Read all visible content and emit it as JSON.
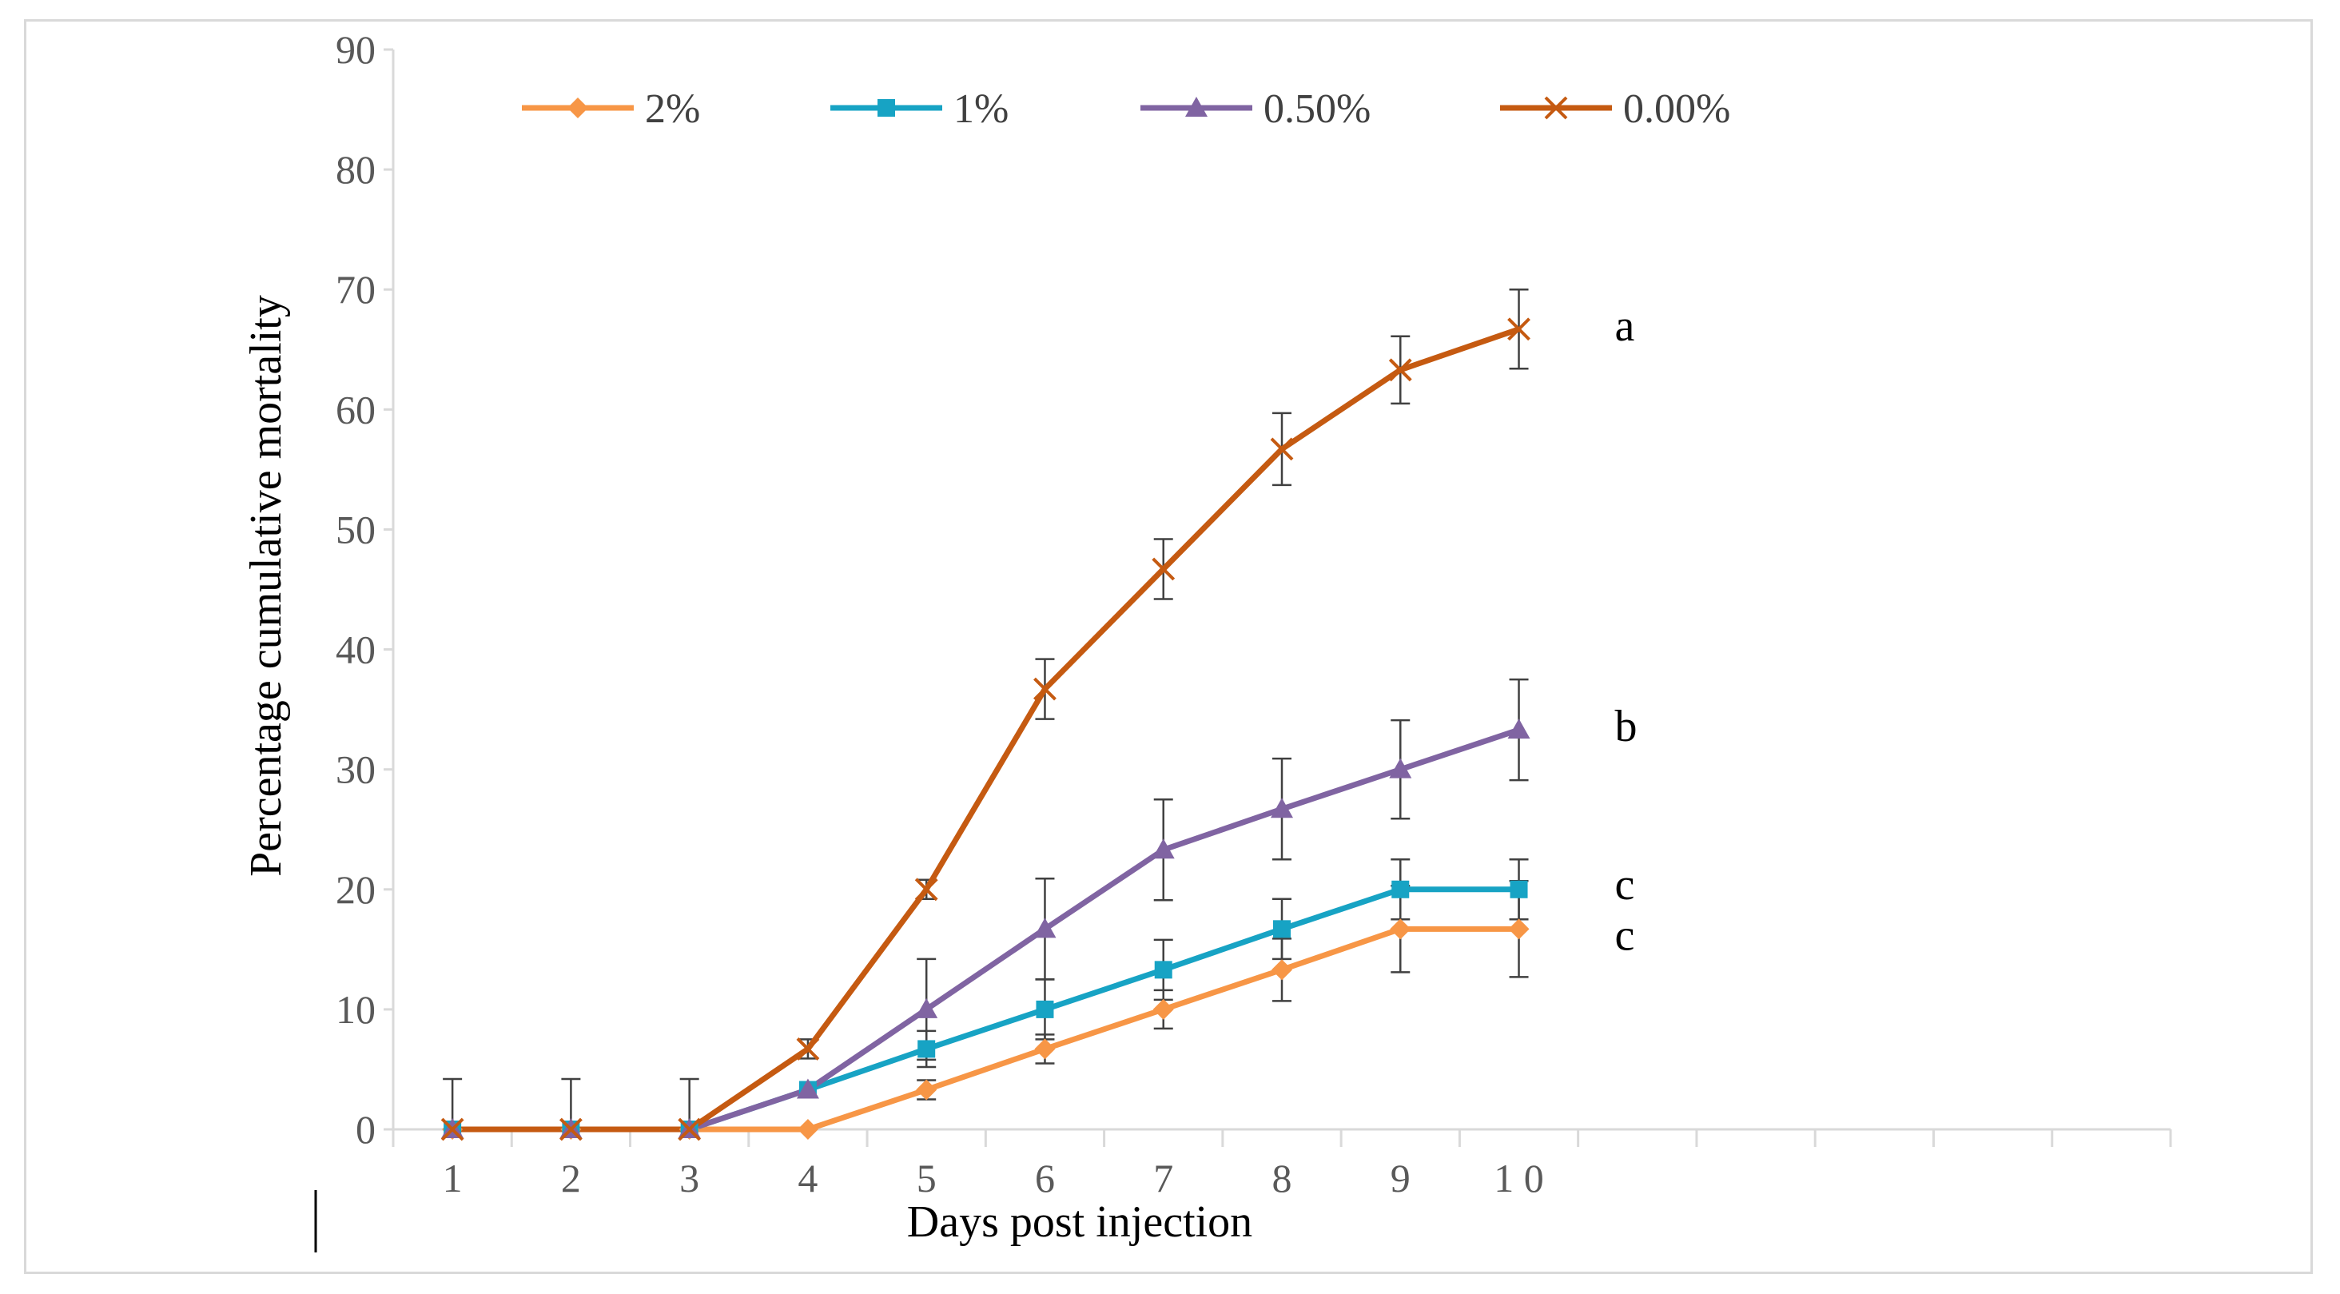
{
  "chart_data": {
    "type": "line",
    "title": "",
    "xlabel": "Days post injection",
    "ylabel": "Percentage cumulative mortality",
    "x": [
      1,
      2,
      3,
      4,
      5,
      6,
      7,
      8,
      9,
      10
    ],
    "x_tick_labels": [
      "1",
      "2",
      "3",
      "4",
      "5",
      "6",
      "7",
      "8",
      "9",
      "1 0"
    ],
    "x_axis_categories": 15,
    "y_ticks": [
      0,
      10,
      20,
      30,
      40,
      50,
      60,
      70,
      80,
      90
    ],
    "ylim": [
      0,
      90
    ],
    "grid": false,
    "legend_position": "top",
    "series": [
      {
        "name": "2%",
        "color": "#F79646",
        "marker": "diamond",
        "values": [
          0,
          0,
          0,
          0,
          3.3,
          6.7,
          10,
          13.3,
          16.7,
          16.7
        ],
        "errors": [
          4.2,
          4.2,
          4.2,
          0,
          0.8,
          1.2,
          1.6,
          2.6,
          3.6,
          4.0
        ],
        "group_letter": "c"
      },
      {
        "name": "1%",
        "color": "#17A3C4",
        "marker": "square",
        "values": [
          0,
          0,
          0,
          3.3,
          6.7,
          10,
          13.3,
          16.7,
          20,
          20
        ],
        "errors": [
          0,
          0,
          0,
          0,
          1.5,
          2.5,
          2.5,
          2.5,
          2.5,
          2.5
        ],
        "group_letter": "c"
      },
      {
        "name": "0.50%",
        "color": "#8064A2",
        "marker": "triangle",
        "values": [
          0,
          0,
          0,
          3.3,
          10,
          16.7,
          23.3,
          26.7,
          30,
          33.3
        ],
        "errors": [
          0,
          0,
          0,
          0,
          4.2,
          4.2,
          4.2,
          4.2,
          4.1,
          4.2
        ],
        "group_letter": "b"
      },
      {
        "name": "0.00%",
        "color": "#C55A11",
        "marker": "x",
        "values": [
          0,
          0,
          0,
          6.7,
          20,
          36.7,
          46.7,
          56.7,
          63.3,
          66.7
        ],
        "errors": [
          0,
          0,
          0,
          0.8,
          0.8,
          2.5,
          2.5,
          3.0,
          2.8,
          3.3
        ],
        "group_letter": "a"
      }
    ]
  }
}
